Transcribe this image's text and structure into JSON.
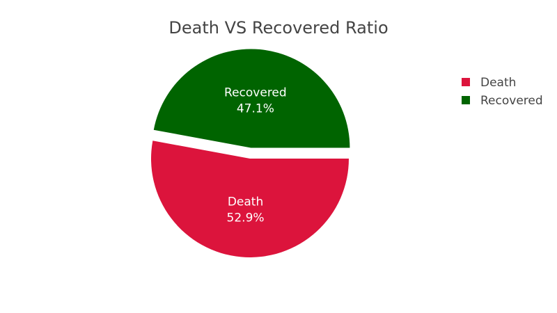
{
  "chart_data": {
    "type": "pie",
    "title": "Death VS Recovered Ratio",
    "slices": [
      {
        "label": "Death",
        "value": 52.9,
        "percent_label": "52.9%",
        "color": "#DC143C",
        "pulled": false
      },
      {
        "label": "Recovered",
        "value": 47.1,
        "percent_label": "47.1%",
        "color": "#006400",
        "pulled": true
      }
    ],
    "legend": {
      "position": "top-right",
      "items": [
        {
          "label": "Death",
          "color": "#DC143C"
        },
        {
          "label": "Recovered",
          "color": "#006400"
        }
      ]
    }
  }
}
